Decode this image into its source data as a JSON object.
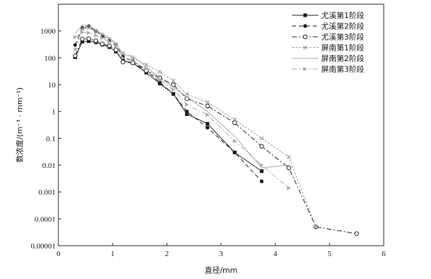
{
  "chart_data": {
    "type": "line",
    "xlabel": "直径/mm",
    "ylabel": "数浓度/(m⁻³ · mm⁻¹)",
    "xlim": [
      0,
      6
    ],
    "ylim": [
      1e-05,
      10000
    ],
    "yscale": "log",
    "x_ticks": [
      0,
      1,
      2,
      3,
      4,
      5,
      6
    ],
    "y_ticks": [
      1e-05,
      0.0001,
      0.001,
      0.01,
      0.1,
      1,
      10,
      100,
      1000
    ],
    "y_tick_labels": [
      "0.00001",
      "0.0001",
      "0.001",
      "0.01",
      "0.1",
      "1",
      "10",
      "100",
      "1000"
    ],
    "legend_position": "top-right",
    "grid": false,
    "series": [
      {
        "name": "尤溪第1阶段",
        "color": "#1a1a1a",
        "dash": "solid",
        "marker": "square-filled",
        "x": [
          0.31,
          0.44,
          0.56,
          0.69,
          0.81,
          0.94,
          1.06,
          1.19,
          1.37,
          1.62,
          1.87,
          2.12,
          2.37,
          2.75,
          3.25,
          3.75
        ],
        "y": [
          105,
          400,
          420,
          380,
          310,
          250,
          170,
          80,
          65,
          28,
          11,
          4.5,
          0.8,
          0.35,
          0.03,
          0.006
        ]
      },
      {
        "name": "尤溪第2阶段",
        "color": "#1a1a1a",
        "dash": "6,4",
        "marker": "circle-filled",
        "x": [
          0.31,
          0.44,
          0.56,
          0.69,
          0.81,
          0.94,
          1.06,
          1.19,
          1.37,
          1.62,
          1.87,
          2.12,
          2.37,
          2.75,
          3.25,
          3.75
        ],
        "y": [
          300,
          1300,
          1500,
          1000,
          650,
          450,
          300,
          110,
          75,
          35,
          12,
          4.5,
          1.0,
          0.25,
          0.03,
          0.0025
        ]
      },
      {
        "name": "尤溪第3阶段",
        "color": "#1a1a1a",
        "dash": "7,3,2,3",
        "marker": "circle-open",
        "x": [
          0.31,
          0.44,
          0.56,
          0.69,
          0.81,
          0.94,
          1.06,
          1.19,
          1.37,
          1.62,
          1.87,
          2.12,
          2.37,
          2.75,
          3.25,
          3.75,
          4.25,
          4.75,
          5.5
        ],
        "y": [
          120,
          500,
          520,
          430,
          330,
          280,
          200,
          70,
          65,
          33,
          18,
          10,
          3.0,
          1.6,
          0.38,
          0.05,
          0.008,
          5e-05,
          2.8e-05
        ]
      },
      {
        "name": "屏南第1阶段",
        "color": "#9a9a9a",
        "dash": "3,2",
        "marker": "cross",
        "x": [
          0.31,
          0.44,
          0.56,
          0.69,
          0.81,
          0.94,
          1.06,
          1.19,
          1.37,
          1.62,
          1.87,
          2.12,
          2.37,
          2.75,
          3.25,
          3.75,
          4.25,
          4.75
        ],
        "y": [
          200,
          1200,
          1300,
          1000,
          750,
          520,
          330,
          150,
          100,
          55,
          30,
          14,
          4.5,
          2.2,
          0.5,
          0.1,
          0.02,
          5e-05
        ]
      },
      {
        "name": "屏南第2阶段",
        "color": "#a8a8a8",
        "dash": "solid",
        "marker": "none",
        "x": [
          0.31,
          0.44,
          0.56,
          0.69,
          0.81,
          0.94,
          1.06,
          1.19,
          1.37,
          1.62,
          1.87,
          2.12,
          2.37,
          2.75,
          3.25,
          3.75,
          4.25
        ],
        "y": [
          800,
          1700,
          1600,
          1100,
          800,
          550,
          350,
          130,
          120,
          45,
          18,
          8,
          3.5,
          1.0,
          0.12,
          0.008,
          0.01
        ]
      },
      {
        "name": "屏南第3阶段",
        "color": "#a8a8a8",
        "dash": "7,3,2,3",
        "marker": "triangle-right",
        "x": [
          0.31,
          0.44,
          0.56,
          0.69,
          0.81,
          0.94,
          1.06,
          1.19,
          1.37,
          1.62,
          1.87,
          2.12,
          2.37,
          2.75,
          3.25,
          3.75,
          4.25
        ],
        "y": [
          600,
          900,
          850,
          700,
          550,
          400,
          280,
          100,
          75,
          40,
          15,
          6.5,
          1.8,
          0.75,
          0.08,
          0.01,
          0.0014
        ]
      }
    ]
  }
}
